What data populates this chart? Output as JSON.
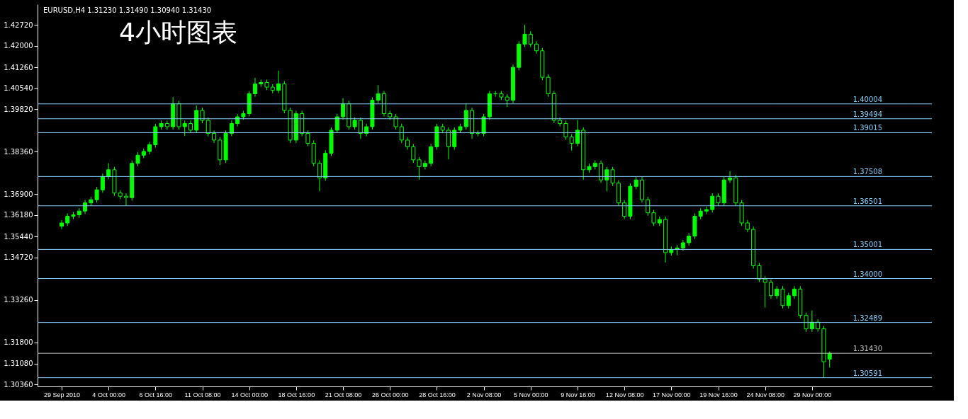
{
  "chart_data": {
    "type": "candlestick",
    "title": "4小时图表",
    "subtitle": "EURUSD,H4  1.31230 1.31490 1.30940 1.31430",
    "color": "#00ff00",
    "categories": [
      "29 Sep 2010",
      null,
      null,
      null,
      null,
      null,
      null,
      null,
      "4 Oct 00:00",
      null,
      null,
      null,
      null,
      null,
      null,
      null,
      "6 Oct 16:00",
      null,
      null,
      null,
      null,
      null,
      null,
      null,
      "11 Oct 08:00",
      null,
      null,
      null,
      null,
      null,
      null,
      null,
      "14 Oct 00:00",
      null,
      null,
      null,
      null,
      null,
      null,
      null,
      "18 Oct 16:00",
      null,
      null,
      null,
      null,
      null,
      null,
      null,
      "21 Oct 08:00",
      null,
      null,
      null,
      null,
      null,
      null,
      null,
      "26 Oct 00:00",
      null,
      null,
      null,
      null,
      null,
      null,
      null,
      "28 Oct 16:00",
      null,
      null,
      null,
      null,
      null,
      null,
      null,
      "2 Nov 08:00",
      null,
      null,
      null,
      null,
      null,
      null,
      null,
      "5 Nov 00:00",
      null,
      null,
      null,
      null,
      null,
      null,
      null,
      "9 Nov 16:00",
      null,
      null,
      null,
      null,
      null,
      null,
      null,
      "12 Nov 08:00",
      null,
      null,
      null,
      null,
      null,
      null,
      null,
      "17 Nov 00:00",
      null,
      null,
      null,
      null,
      null,
      null,
      null,
      "19 Nov 16:00",
      null,
      null,
      null,
      null,
      null,
      null,
      null,
      "24 Nov 08:00",
      null,
      null,
      null,
      null,
      null,
      null,
      null,
      "29 Nov 00:00",
      null,
      null,
      null
    ],
    "ohlc": [
      [
        1.358,
        1.3601,
        1.357,
        1.3591
      ],
      [
        1.3591,
        1.3624,
        1.3581,
        1.3614
      ],
      [
        1.3614,
        1.3629,
        1.3604,
        1.3619
      ],
      [
        1.3619,
        1.3642,
        1.3609,
        1.3632
      ],
      [
        1.3632,
        1.367,
        1.3622,
        1.366
      ],
      [
        1.366,
        1.3681,
        1.365,
        1.3671
      ],
      [
        1.3671,
        1.3715,
        1.3661,
        1.3705
      ],
      [
        1.3705,
        1.3761,
        1.3695,
        1.3751
      ],
      [
        1.3751,
        1.3796,
        1.3741,
        1.3774
      ],
      [
        1.3774,
        1.3784,
        1.3684,
        1.3694
      ],
      [
        1.3694,
        1.3704,
        1.3673,
        1.3683
      ],
      [
        1.3683,
        1.3693,
        1.365,
        1.3678
      ],
      [
        1.3678,
        1.3806,
        1.3668,
        1.3796
      ],
      [
        1.3796,
        1.3834,
        1.3786,
        1.3824
      ],
      [
        1.3824,
        1.3847,
        1.3814,
        1.3837
      ],
      [
        1.3837,
        1.387,
        1.3827,
        1.386
      ],
      [
        1.386,
        1.3932,
        1.385,
        1.3922
      ],
      [
        1.3922,
        1.3943,
        1.3912,
        1.3933
      ],
      [
        1.3933,
        1.3943,
        1.3912,
        1.3922
      ],
      [
        1.3922,
        1.4024,
        1.3912,
        1.4001
      ],
      [
        1.4001,
        1.4011,
        1.3912,
        1.3922
      ],
      [
        1.3922,
        1.3943,
        1.389,
        1.3933
      ],
      [
        1.3933,
        1.3943,
        1.39,
        1.391
      ],
      [
        1.391,
        1.3995,
        1.39,
        1.3978
      ],
      [
        1.3978,
        1.3988,
        1.3934,
        1.3944
      ],
      [
        1.3944,
        1.3954,
        1.3889,
        1.3899
      ],
      [
        1.3899,
        1.3909,
        1.3866,
        1.3876
      ],
      [
        1.3876,
        1.3886,
        1.379,
        1.3808
      ],
      [
        1.3808,
        1.3909,
        1.3798,
        1.3899
      ],
      [
        1.3899,
        1.3943,
        1.3889,
        1.3933
      ],
      [
        1.3933,
        1.3966,
        1.3923,
        1.3956
      ],
      [
        1.3956,
        1.3977,
        1.3946,
        1.3967
      ],
      [
        1.3967,
        1.4045,
        1.3957,
        1.4035
      ],
      [
        1.4035,
        1.409,
        1.4025,
        1.4069
      ],
      [
        1.4069,
        1.4084,
        1.4059,
        1.4074
      ],
      [
        1.4074,
        1.4084,
        1.4048,
        1.4058
      ],
      [
        1.4058,
        1.4068,
        1.4037,
        1.4047
      ],
      [
        1.4047,
        1.4115,
        1.4037,
        1.4069
      ],
      [
        1.4069,
        1.4079,
        1.3968,
        1.3978
      ],
      [
        1.3978,
        1.3988,
        1.3866,
        1.3876
      ],
      [
        1.3876,
        1.3977,
        1.3866,
        1.3967
      ],
      [
        1.3967,
        1.3977,
        1.3889,
        1.3899
      ],
      [
        1.3899,
        1.3909,
        1.3855,
        1.3865
      ],
      [
        1.3865,
        1.3875,
        1.3786,
        1.3796
      ],
      [
        1.3796,
        1.3806,
        1.37,
        1.3746
      ],
      [
        1.3746,
        1.3841,
        1.3736,
        1.3831
      ],
      [
        1.3831,
        1.392,
        1.3821,
        1.391
      ],
      [
        1.391,
        1.3966,
        1.39,
        1.3956
      ],
      [
        1.3956,
        1.402,
        1.3946,
        1.4001
      ],
      [
        1.4001,
        1.4011,
        1.3912,
        1.3922
      ],
      [
        1.3922,
        1.3954,
        1.3912,
        1.3944
      ],
      [
        1.3944,
        1.3954,
        1.388,
        1.3899
      ],
      [
        1.3899,
        1.3932,
        1.3889,
        1.3922
      ],
      [
        1.3922,
        1.4023,
        1.3912,
        1.4013
      ],
      [
        1.4013,
        1.4065,
        1.4003,
        1.4035
      ],
      [
        1.4035,
        1.4045,
        1.3957,
        1.3967
      ],
      [
        1.3967,
        1.3977,
        1.3946,
        1.3956
      ],
      [
        1.3956,
        1.3966,
        1.3912,
        1.3922
      ],
      [
        1.3922,
        1.3932,
        1.3866,
        1.3876
      ],
      [
        1.3876,
        1.3886,
        1.3843,
        1.3853
      ],
      [
        1.3853,
        1.3863,
        1.3798,
        1.3808
      ],
      [
        1.3808,
        1.3818,
        1.374,
        1.3785
      ],
      [
        1.3785,
        1.3806,
        1.3775,
        1.3796
      ],
      [
        1.3796,
        1.3863,
        1.3786,
        1.3853
      ],
      [
        1.3853,
        1.3932,
        1.3843,
        1.3922
      ],
      [
        1.3922,
        1.3932,
        1.39,
        1.391
      ],
      [
        1.391,
        1.392,
        1.381,
        1.3853
      ],
      [
        1.3853,
        1.392,
        1.3843,
        1.391
      ],
      [
        1.391,
        1.3932,
        1.39,
        1.3922
      ],
      [
        1.3922,
        1.4001,
        1.3912,
        1.3978
      ],
      [
        1.3978,
        1.3988,
        1.388,
        1.3899
      ],
      [
        1.3899,
        1.3909,
        1.3889,
        1.3899
      ],
      [
        1.3899,
        1.3966,
        1.3889,
        1.3956
      ],
      [
        1.3956,
        1.4045,
        1.3946,
        1.4035
      ],
      [
        1.4035,
        1.4045,
        1.4025,
        1.4035
      ],
      [
        1.4035,
        1.4045,
        1.4014,
        1.4024
      ],
      [
        1.4024,
        1.4034,
        1.399,
        1.4013
      ],
      [
        1.4013,
        1.4136,
        1.4003,
        1.4126
      ],
      [
        1.4126,
        1.4216,
        1.4116,
        1.4206
      ],
      [
        1.4206,
        1.4272,
        1.4196,
        1.424
      ],
      [
        1.424,
        1.425,
        1.4196,
        1.4206
      ],
      [
        1.4206,
        1.4216,
        1.4173,
        1.4183
      ],
      [
        1.4183,
        1.4193,
        1.4082,
        1.4092
      ],
      [
        1.4092,
        1.4102,
        1.4025,
        1.4035
      ],
      [
        1.4035,
        1.4045,
        1.3934,
        1.3944
      ],
      [
        1.3944,
        1.3954,
        1.3923,
        1.3933
      ],
      [
        1.3933,
        1.3943,
        1.3877,
        1.3887
      ],
      [
        1.3887,
        1.3897,
        1.384,
        1.3865
      ],
      [
        1.3865,
        1.3945,
        1.3855,
        1.391
      ],
      [
        1.391,
        1.392,
        1.374,
        1.3774
      ],
      [
        1.3774,
        1.3795,
        1.3764,
        1.3785
      ],
      [
        1.3785,
        1.3806,
        1.3775,
        1.3796
      ],
      [
        1.3796,
        1.3806,
        1.3729,
        1.3739
      ],
      [
        1.3739,
        1.3784,
        1.37,
        1.3774
      ],
      [
        1.3774,
        1.3784,
        1.3718,
        1.3728
      ],
      [
        1.3728,
        1.3738,
        1.365,
        1.366
      ],
      [
        1.366,
        1.367,
        1.3604,
        1.3614
      ],
      [
        1.3614,
        1.3727,
        1.3604,
        1.3717
      ],
      [
        1.3717,
        1.3749,
        1.3707,
        1.3739
      ],
      [
        1.3739,
        1.3749,
        1.3661,
        1.3671
      ],
      [
        1.3671,
        1.3681,
        1.3616,
        1.3626
      ],
      [
        1.3626,
        1.3636,
        1.3581,
        1.3591
      ],
      [
        1.3591,
        1.3613,
        1.3581,
        1.3603
      ],
      [
        1.3603,
        1.3613,
        1.3455,
        1.3489
      ],
      [
        1.3489,
        1.351,
        1.3479,
        1.35
      ],
      [
        1.35,
        1.3515,
        1.348,
        1.3505
      ],
      [
        1.3505,
        1.3533,
        1.3495,
        1.3523
      ],
      [
        1.3523,
        1.3556,
        1.3513,
        1.3546
      ],
      [
        1.3546,
        1.3624,
        1.3536,
        1.3614
      ],
      [
        1.3614,
        1.3642,
        1.3604,
        1.3632
      ],
      [
        1.3632,
        1.3647,
        1.3622,
        1.3637
      ],
      [
        1.3637,
        1.3693,
        1.3627,
        1.3683
      ],
      [
        1.3683,
        1.3693,
        1.365,
        1.366
      ],
      [
        1.366,
        1.3749,
        1.365,
        1.3739
      ],
      [
        1.3739,
        1.377,
        1.3729,
        1.3746
      ],
      [
        1.3746,
        1.3756,
        1.365,
        1.366
      ],
      [
        1.366,
        1.367,
        1.3581,
        1.3591
      ],
      [
        1.3591,
        1.3601,
        1.3559,
        1.3569
      ],
      [
        1.3569,
        1.3579,
        1.3434,
        1.3444
      ],
      [
        1.3444,
        1.3454,
        1.3388,
        1.3398
      ],
      [
        1.3398,
        1.3408,
        1.33,
        1.3387
      ],
      [
        1.3387,
        1.3397,
        1.3331,
        1.3341
      ],
      [
        1.3341,
        1.3374,
        1.3331,
        1.3364
      ],
      [
        1.3364,
        1.3374,
        1.3297,
        1.3307
      ],
      [
        1.3307,
        1.3351,
        1.3297,
        1.3341
      ],
      [
        1.3341,
        1.3374,
        1.3331,
        1.3364
      ],
      [
        1.3364,
        1.3374,
        1.3263,
        1.3273
      ],
      [
        1.3273,
        1.3283,
        1.3217,
        1.3227
      ],
      [
        1.3227,
        1.329,
        1.3217,
        1.325
      ],
      [
        1.325,
        1.326,
        1.3217,
        1.3227
      ],
      [
        1.3227,
        1.3237,
        1.306,
        1.3114
      ],
      [
        1.3123,
        1.3149,
        1.3094,
        1.3143
      ]
    ],
    "ylim": [
      1.3029,
      1.4343
    ],
    "yticks": [
      {
        "value": 1.4272,
        "label": "1.42720"
      },
      {
        "value": 1.42,
        "label": "1.42000"
      },
      {
        "value": 1.4126,
        "label": "1.41260"
      },
      {
        "value": 1.4054,
        "label": "1.40540"
      },
      {
        "value": 1.3982,
        "label": "1.39820"
      },
      {
        "value": 1.3836,
        "label": "1.38360"
      },
      {
        "value": 1.369,
        "label": "1.36900"
      },
      {
        "value": 1.3618,
        "label": "1.36180"
      },
      {
        "value": 1.3544,
        "label": "1.35440"
      },
      {
        "value": 1.3472,
        "label": "1.34720"
      },
      {
        "value": 1.3326,
        "label": "1.33260"
      },
      {
        "value": 1.318,
        "label": "1.31800"
      },
      {
        "value": 1.3108,
        "label": "1.31080"
      },
      {
        "value": 1.3036,
        "label": "1.30360"
      }
    ],
    "ref_lines": [
      {
        "axis": "y",
        "value": 1.40004,
        "label": "1.40004",
        "color": "#87cefa"
      },
      {
        "axis": "y",
        "value": 1.39494,
        "label": "1.39494",
        "color": "#87cefa"
      },
      {
        "axis": "y",
        "value": 1.39015,
        "label": "1.39015",
        "color": "#87cefa"
      },
      {
        "axis": "y",
        "value": 1.37508,
        "label": "1.37508",
        "color": "#87cefa"
      },
      {
        "axis": "y",
        "value": 1.36501,
        "label": "1.36501",
        "color": "#87cefa"
      },
      {
        "axis": "y",
        "value": 1.35001,
        "label": "1.35001",
        "color": "#87cefa"
      },
      {
        "axis": "y",
        "value": 1.34,
        "label": "1.34000",
        "color": "#87cefa"
      },
      {
        "axis": "y",
        "value": 1.32489,
        "label": "1.32489",
        "color": "#87cefa"
      },
      {
        "axis": "y",
        "value": 1.3143,
        "label": "1.31430",
        "color": "#c0c0c0"
      },
      {
        "axis": "y",
        "value": 1.30591,
        "label": "1.30591",
        "color": "#87cefa"
      }
    ]
  }
}
